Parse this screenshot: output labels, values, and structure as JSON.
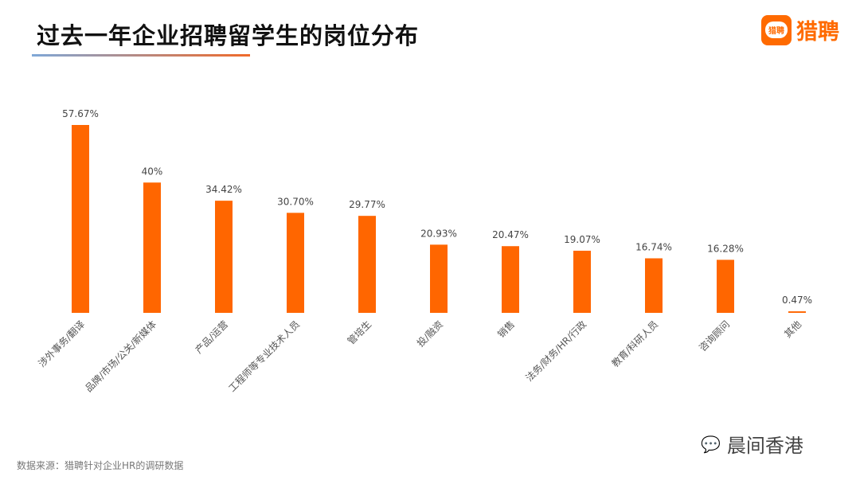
{
  "header": {
    "title": "过去一年企业招聘留学生的岗位分布",
    "logo_text": "猎聘",
    "logo_bubble": "猎聘"
  },
  "footer": {
    "source": "数据来源：猎聘针对企业HR的调研数据",
    "watermark": "晨间香港",
    "watermark_icon": "wechat-icon"
  },
  "colors": {
    "bar": "#ff6600",
    "accent": "#ff6a00"
  },
  "chart_data": {
    "type": "bar",
    "title": "过去一年企业招聘留学生的岗位分布",
    "categories": [
      "涉外事务/翻译",
      "品牌/市场/公关/新媒体",
      "产品/运营",
      "工程师等专业技术人员",
      "管培生",
      "投/融资",
      "销售",
      "法务/财务/HR/行政",
      "教育/科研人员",
      "咨询顾问",
      "其他"
    ],
    "values": [
      57.67,
      40,
      34.42,
      30.7,
      29.77,
      20.93,
      20.47,
      19.07,
      16.74,
      16.28,
      0.47
    ],
    "labels": [
      "57.67%",
      "40%",
      "34.42%",
      "30.70%",
      "29.77%",
      "20.93%",
      "20.47%",
      "19.07%",
      "16.74%",
      "16.28%",
      "0.47%"
    ],
    "unit": "%",
    "ylim": [
      0,
      60
    ],
    "grid": false,
    "legend": "none"
  }
}
